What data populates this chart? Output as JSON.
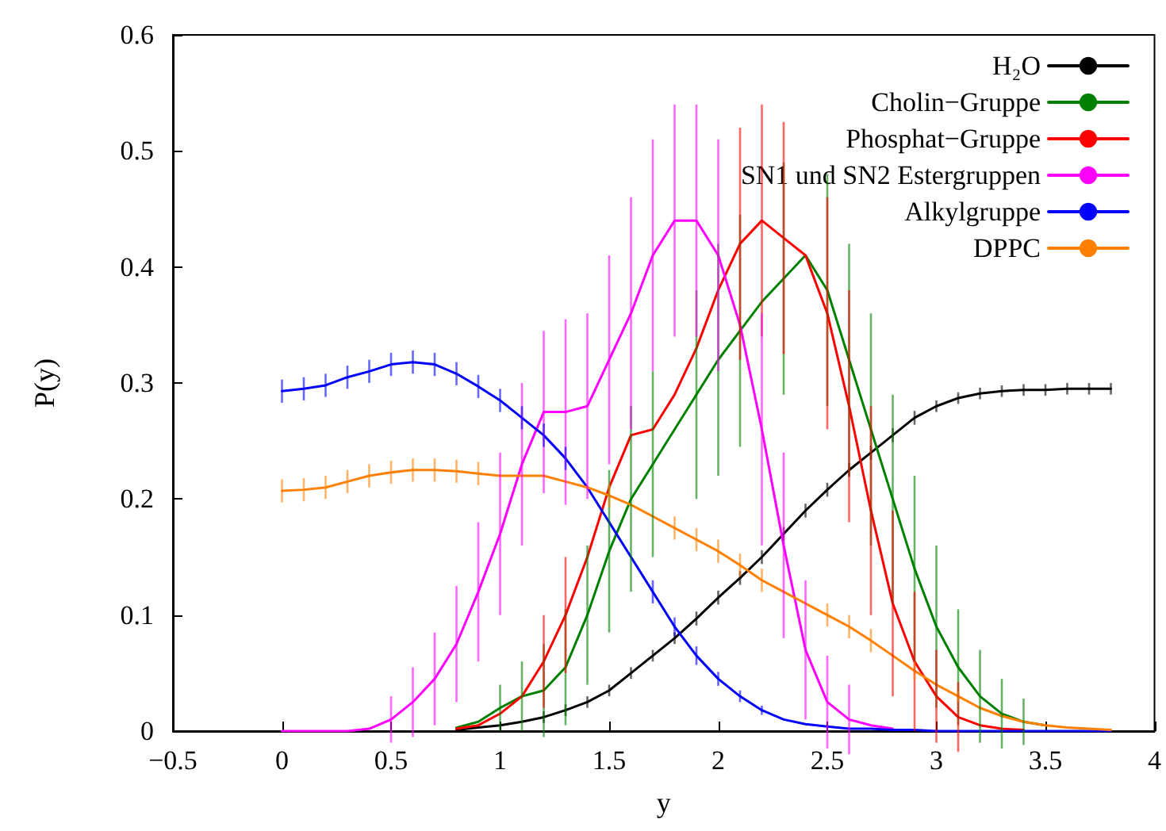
{
  "chart_data": {
    "type": "line",
    "xlabel": "y",
    "ylabel": "P(y)",
    "x": [
      0,
      0.1,
      0.2,
      0.3,
      0.4,
      0.5,
      0.6,
      0.7,
      0.8,
      0.9,
      1,
      1.1,
      1.2,
      1.3,
      1.4,
      1.5,
      1.6,
      1.7,
      1.8,
      1.9,
      2,
      2.1,
      2.2,
      2.3,
      2.4,
      2.5,
      2.6,
      2.7,
      2.8,
      2.9,
      3,
      3.1,
      3.2,
      3.3,
      3.4,
      3.5,
      3.6,
      3.7,
      3.8
    ],
    "xlim": [
      -0.5,
      4
    ],
    "xticks": [
      {
        "value": -0.5,
        "label": "−0.5"
      },
      0,
      0.5,
      1,
      1.5,
      2,
      2.5,
      3,
      3.5,
      4
    ],
    "ylim": [
      0,
      0.6
    ],
    "yticks": [
      0,
      0.1,
      0.2,
      0.3,
      0.4,
      0.5,
      0.6
    ],
    "legend": "top right",
    "marker": "none",
    "line_style": "solid",
    "grid": false,
    "series": [
      {
        "name": "H₂O",
        "color": "#000000",
        "values": [
          null,
          null,
          null,
          null,
          null,
          null,
          null,
          null,
          0.001,
          0.003,
          0.005,
          0.008,
          0.012,
          0.018,
          0.025,
          0.035,
          0.05,
          0.065,
          0.08,
          0.097,
          0.115,
          0.132,
          0.15,
          0.17,
          0.19,
          0.208,
          0.225,
          0.24,
          0.255,
          0.27,
          0.28,
          0.287,
          0.291,
          0.293,
          0.294,
          0.294,
          0.295,
          0.295,
          0.295
        ],
        "errors": [
          null,
          null,
          null,
          null,
          null,
          null,
          null,
          null,
          null,
          null,
          null,
          null,
          0.005,
          0.005,
          0.005,
          0.005,
          0.005,
          0.005,
          0.005,
          0.006,
          0.006,
          0.006,
          0.006,
          0.006,
          0.006,
          0.006,
          0.006,
          0.006,
          0.006,
          0.006,
          0.005,
          0.005,
          0.005,
          0.005,
          0.005,
          0.005,
          0.005,
          0.005,
          0.005
        ]
      },
      {
        "name": "Cholin−Gruppe",
        "color": "#008000",
        "values": [
          null,
          null,
          null,
          null,
          null,
          null,
          null,
          null,
          0.003,
          0.008,
          0.02,
          0.03,
          0.035,
          0.055,
          0.1,
          0.155,
          0.2,
          0.23,
          0.26,
          0.29,
          0.32,
          0.345,
          0.37,
          0.39,
          0.41,
          0.38,
          0.32,
          0.26,
          0.2,
          0.14,
          0.09,
          0.055,
          0.03,
          0.015,
          0.008,
          0.005,
          null,
          null,
          null
        ],
        "errors": [
          null,
          null,
          null,
          null,
          null,
          null,
          null,
          null,
          null,
          null,
          0.02,
          0.03,
          0.04,
          0.05,
          0.06,
          0.07,
          0.08,
          0.08,
          null,
          0.09,
          0.1,
          0.1,
          null,
          0.1,
          null,
          0.1,
          0.1,
          0.1,
          0.09,
          0.08,
          0.07,
          0.05,
          0.04,
          0.03,
          0.02,
          null,
          null,
          null,
          null
        ]
      },
      {
        "name": "Phosphat−Gruppe",
        "color": "#ff0000",
        "values": [
          null,
          null,
          null,
          null,
          null,
          null,
          null,
          null,
          0.002,
          0.005,
          0.015,
          0.03,
          0.06,
          0.1,
          0.15,
          0.21,
          0.255,
          0.26,
          0.29,
          0.33,
          0.38,
          0.42,
          0.44,
          0.425,
          0.41,
          0.36,
          0.28,
          0.19,
          0.11,
          0.06,
          0.03,
          0.012,
          0.005,
          0.002,
          0.001,
          null,
          null,
          null,
          null
        ],
        "errors": [
          null,
          null,
          null,
          null,
          null,
          null,
          null,
          null,
          null,
          null,
          null,
          null,
          0.04,
          0.05,
          null,
          null,
          null,
          null,
          null,
          null,
          null,
          0.1,
          0.1,
          0.1,
          null,
          0.1,
          0.1,
          0.09,
          0.08,
          0.06,
          0.04,
          0.03,
          null,
          null,
          null,
          null,
          null,
          null,
          null
        ]
      },
      {
        "name": "SN1 und SN2 Estergruppen",
        "color": "#ff00ff",
        "values": [
          0,
          0,
          0,
          0,
          0.002,
          0.01,
          0.025,
          0.045,
          0.075,
          0.12,
          0.17,
          0.23,
          0.275,
          0.275,
          0.28,
          0.32,
          0.36,
          0.41,
          0.44,
          0.44,
          0.41,
          0.35,
          0.26,
          0.16,
          0.07,
          0.025,
          0.01,
          0.005,
          0.002,
          null,
          null,
          null,
          null,
          null,
          null,
          null,
          null,
          null,
          null
        ],
        "errors": [
          null,
          null,
          null,
          null,
          null,
          0.02,
          0.03,
          0.04,
          0.05,
          0.06,
          0.07,
          0.07,
          0.07,
          0.08,
          0.08,
          0.09,
          0.1,
          0.1,
          0.1,
          0.1,
          0.1,
          null,
          0.1,
          0.08,
          0.06,
          0.04,
          0.03,
          null,
          null,
          null,
          null,
          null,
          null,
          null,
          null,
          null,
          null,
          null,
          null
        ]
      },
      {
        "name": "Alkylgruppe",
        "color": "#0000ff",
        "values": [
          0.293,
          0.295,
          0.298,
          0.305,
          0.31,
          0.316,
          0.318,
          0.316,
          0.308,
          0.297,
          0.285,
          0.27,
          0.255,
          0.235,
          0.21,
          0.18,
          0.15,
          0.12,
          0.09,
          0.065,
          0.045,
          0.03,
          0.018,
          0.01,
          0.006,
          0.004,
          0.002,
          0.002,
          0.001,
          0.001,
          0,
          0,
          0,
          0,
          0,
          0,
          0,
          0,
          0
        ],
        "errors": [
          0.01,
          0.01,
          0.01,
          0.01,
          0.01,
          0.01,
          0.01,
          0.01,
          0.01,
          0.01,
          0.01,
          0.01,
          0.01,
          0.01,
          null,
          null,
          null,
          0.01,
          0.008,
          0.008,
          0.006,
          0.005,
          0.004,
          null,
          null,
          null,
          null,
          null,
          null,
          null,
          null,
          null,
          null,
          null,
          null,
          null,
          null,
          null,
          null
        ]
      },
      {
        "name": "DPPC",
        "color": "#ff8000",
        "values": [
          0.207,
          0.208,
          0.21,
          0.215,
          0.22,
          0.223,
          0.225,
          0.225,
          0.224,
          0.222,
          0.22,
          0.22,
          0.22,
          0.215,
          0.21,
          0.203,
          0.195,
          0.185,
          0.175,
          0.165,
          0.155,
          0.143,
          0.13,
          0.12,
          0.11,
          0.1,
          0.09,
          0.078,
          0.065,
          0.052,
          0.04,
          0.03,
          0.02,
          0.013,
          0.008,
          0.005,
          0.003,
          0.002,
          0.001
        ],
        "errors": [
          0.01,
          0.01,
          0.01,
          0.01,
          0.01,
          0.01,
          0.01,
          0.01,
          0.01,
          0.01,
          null,
          null,
          null,
          null,
          null,
          0.01,
          null,
          null,
          0.01,
          0.01,
          0.01,
          0.01,
          0.01,
          null,
          null,
          0.01,
          0.01,
          0.01,
          null,
          0.008,
          null,
          0.005,
          null,
          null,
          null,
          null,
          null,
          null,
          null
        ]
      }
    ]
  }
}
